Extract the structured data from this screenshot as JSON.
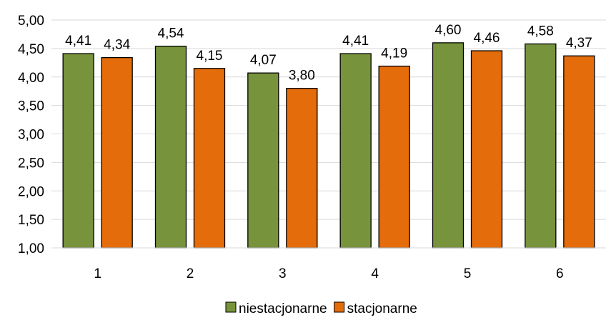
{
  "chart_data": {
    "type": "bar",
    "categories": [
      "1",
      "2",
      "3",
      "4",
      "5",
      "6"
    ],
    "series": [
      {
        "name": "niestacjonarne",
        "values": [
          4.41,
          4.54,
          4.07,
          4.41,
          4.6,
          4.58
        ],
        "labels": [
          "4,41",
          "4,54",
          "4,07",
          "4,41",
          "4,60",
          "4,58"
        ],
        "color": "#77933C"
      },
      {
        "name": "stacjonarne",
        "values": [
          4.34,
          4.15,
          3.8,
          4.19,
          4.46,
          4.37
        ],
        "labels": [
          "4,34",
          "4,15",
          "3,80",
          "4,19",
          "4,46",
          "4,37"
        ],
        "color": "#E46C0A"
      }
    ],
    "title": "",
    "xlabel": "",
    "ylabel": "",
    "ylim": [
      1.0,
      5.0
    ],
    "yticks": [
      "1,00",
      "1,50",
      "2,00",
      "2,50",
      "3,00",
      "3,50",
      "4,00",
      "4,50",
      "5,00"
    ],
    "grid": true,
    "legend_position": "bottom"
  }
}
